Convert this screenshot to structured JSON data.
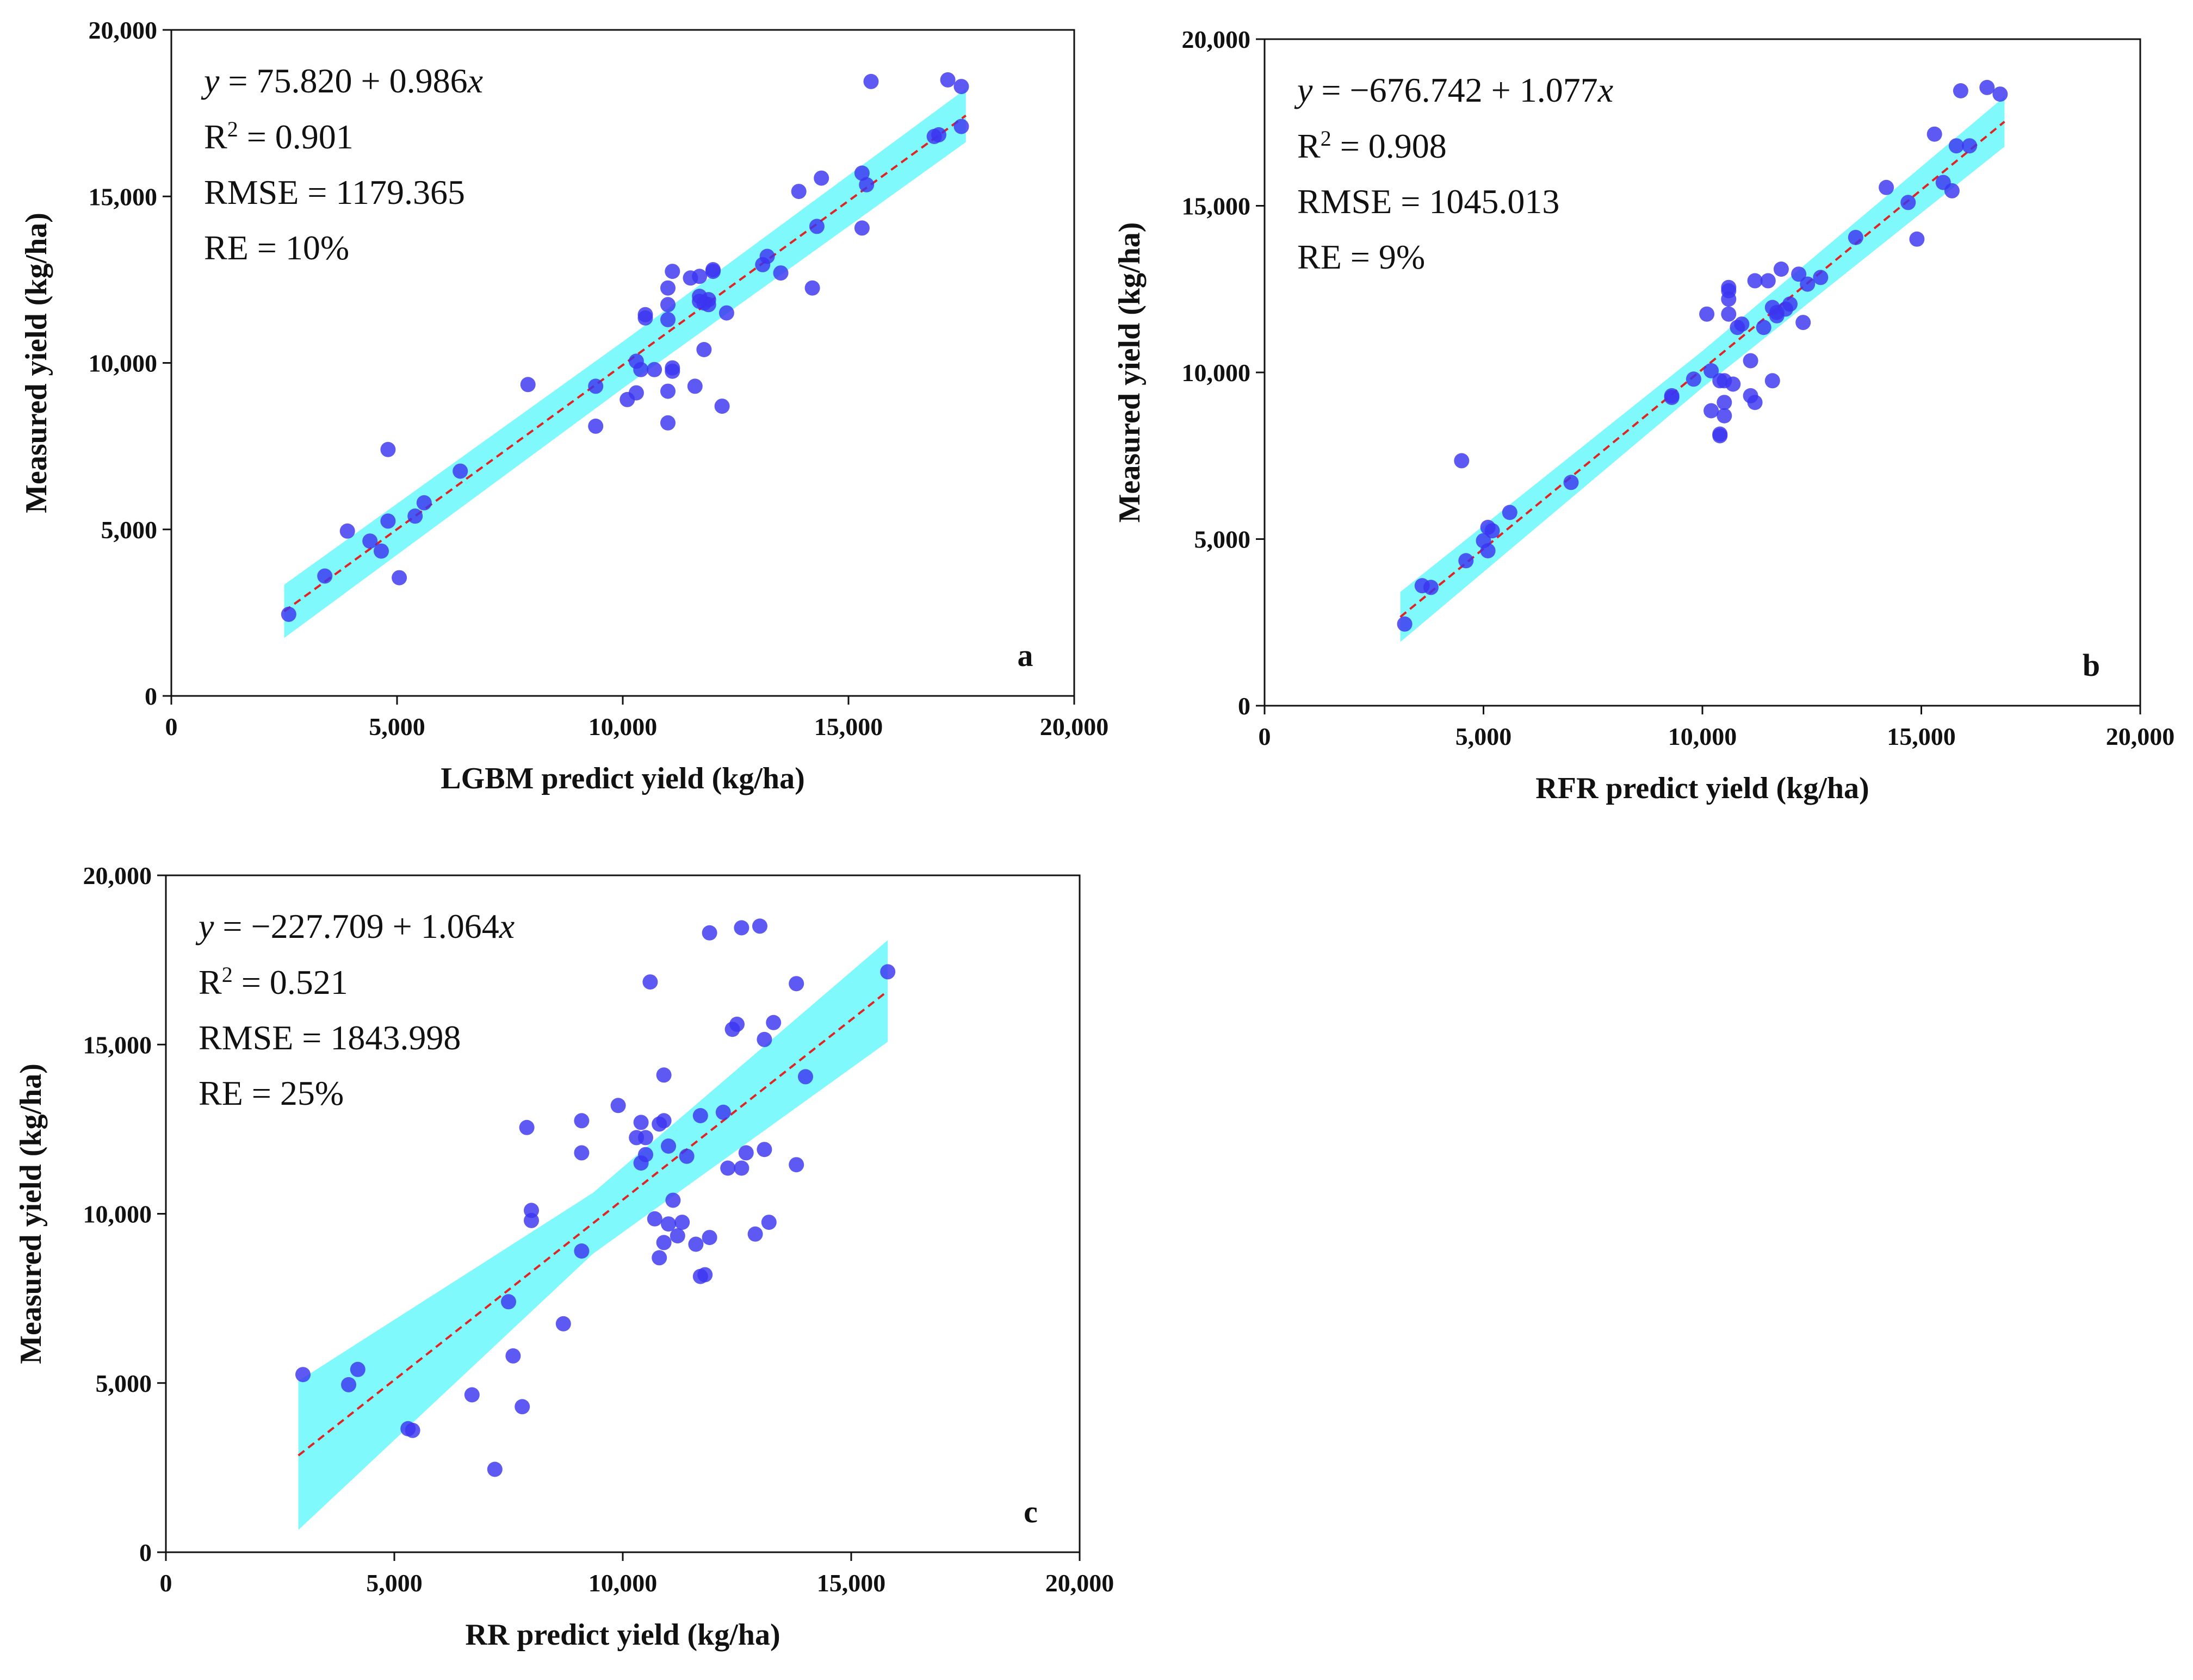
{
  "figure": {
    "panel_count": 3
  },
  "chart_data": [
    {
      "type": "scatter",
      "panel": "a",
      "xlabel": "LGBM predict yield (kg/ha)",
      "ylabel": "Measured yield (kg/ha)",
      "xlim": [
        0,
        20000
      ],
      "ylim": [
        0,
        20000
      ],
      "xticks": [
        0,
        5000,
        10000,
        15000,
        20000
      ],
      "yticks": [
        0,
        5000,
        10000,
        15000,
        20000
      ],
      "xtick_labels": [
        "0",
        "5,000",
        "10,000",
        "15,000",
        "20,000"
      ],
      "ytick_labels": [
        "0",
        "5,000",
        "10,000",
        "15,000",
        "20,000"
      ],
      "fit": {
        "intercept": 75.82,
        "slope": 0.986,
        "x_range": [
          2500,
          17600
        ],
        "band_half_width": [
          800,
          700,
          800
        ]
      },
      "equation": {
        "y_var": "y",
        "text": " = 75.820 + 0.986",
        "x_var": "x"
      },
      "r2": {
        "prefix": "R",
        "sup": "2",
        "text": " = 0.901"
      },
      "rmse": "RMSE = 1179.365",
      "re": "RE = 10%",
      "colors": {
        "point": "#3a35f0",
        "band": "#7ff9fb",
        "fit_line": "#e02424"
      },
      "points": [
        [
          2600,
          2450
        ],
        [
          3400,
          3600
        ],
        [
          3900,
          4950
        ],
        [
          4400,
          4650
        ],
        [
          4800,
          7400
        ],
        [
          4800,
          5250
        ],
        [
          4650,
          4350
        ],
        [
          5050,
          3550
        ],
        [
          5400,
          5400
        ],
        [
          5600,
          5800
        ],
        [
          6400,
          6750
        ],
        [
          7900,
          9350
        ],
        [
          9400,
          8100
        ],
        [
          9400,
          9300
        ],
        [
          10100,
          8900
        ],
        [
          10300,
          9100
        ],
        [
          10400,
          9800
        ],
        [
          10300,
          10050
        ],
        [
          10500,
          11450
        ],
        [
          10500,
          11350
        ],
        [
          10700,
          9800
        ],
        [
          11000,
          8200
        ],
        [
          11000,
          9150
        ],
        [
          11100,
          9850
        ],
        [
          11100,
          9750
        ],
        [
          11000,
          11750
        ],
        [
          11000,
          12250
        ],
        [
          11100,
          12750
        ],
        [
          11000,
          11300
        ],
        [
          11500,
          12550
        ],
        [
          11600,
          9300
        ],
        [
          11700,
          11850
        ],
        [
          11700,
          12000
        ],
        [
          11700,
          12600
        ],
        [
          11800,
          10400
        ],
        [
          11800,
          11800
        ],
        [
          11900,
          11750
        ],
        [
          11900,
          11900
        ],
        [
          12000,
          12800
        ],
        [
          12000,
          12750
        ],
        [
          12200,
          8700
        ],
        [
          12300,
          11500
        ],
        [
          13100,
          12950
        ],
        [
          13200,
          13200
        ],
        [
          13500,
          12700
        ],
        [
          13900,
          15150
        ],
        [
          14200,
          12250
        ],
        [
          14300,
          14100
        ],
        [
          14400,
          15550
        ],
        [
          15300,
          14050
        ],
        [
          15300,
          15700
        ],
        [
          15400,
          15350
        ],
        [
          15500,
          18450
        ],
        [
          16900,
          16800
        ],
        [
          17000,
          16850
        ],
        [
          17200,
          18500
        ],
        [
          17500,
          18300
        ],
        [
          17500,
          17100
        ]
      ]
    },
    {
      "type": "scatter",
      "panel": "b",
      "xlabel": "RFR predict yield (kg/ha)",
      "ylabel": "Measured yield (kg/ha)",
      "xlim": [
        0,
        20000
      ],
      "ylim": [
        0,
        20000
      ],
      "xticks": [
        0,
        5000,
        10000,
        15000,
        20000
      ],
      "yticks": [
        0,
        5000,
        10000,
        15000,
        20000
      ],
      "xtick_labels": [
        "0",
        "5,000",
        "10,000",
        "15,000",
        "20,000"
      ],
      "ytick_labels": [
        "0",
        "5,000",
        "10,000",
        "15,000",
        "20,000"
      ],
      "fit": {
        "intercept": -676.742,
        "slope": 1.077,
        "x_range": [
          3100,
          16900
        ],
        "band_half_width": [
          750,
          550,
          750
        ]
      },
      "equation": {
        "y_var": "y",
        "text": " = −676.742 + 1.077",
        "x_var": "x"
      },
      "r2": {
        "prefix": "R",
        "sup": "2",
        "text": " = 0.908"
      },
      "rmse": "RMSE = 1045.013",
      "re": "RE = 9%",
      "colors": {
        "point": "#3a35f0",
        "band": "#7ff9fb",
        "fit_line": "#e02424"
      },
      "points": [
        [
          3200,
          2450
        ],
        [
          3600,
          3600
        ],
        [
          3800,
          3550
        ],
        [
          4500,
          7350
        ],
        [
          4600,
          4350
        ],
        [
          5000,
          4950
        ],
        [
          5100,
          5350
        ],
        [
          5100,
          4650
        ],
        [
          5200,
          5250
        ],
        [
          5600,
          5800
        ],
        [
          7000,
          6700
        ],
        [
          9300,
          9250
        ],
        [
          9300,
          9300
        ],
        [
          9800,
          9800
        ],
        [
          10100,
          11750
        ],
        [
          10200,
          10050
        ],
        [
          10200,
          8850
        ],
        [
          10400,
          9750
        ],
        [
          10400,
          8150
        ],
        [
          10400,
          8100
        ],
        [
          10500,
          9750
        ],
        [
          10500,
          9100
        ],
        [
          10500,
          8700
        ],
        [
          10600,
          12550
        ],
        [
          10600,
          12450
        ],
        [
          10600,
          12200
        ],
        [
          10600,
          11750
        ],
        [
          10700,
          9650
        ],
        [
          10800,
          11350
        ],
        [
          10900,
          11450
        ],
        [
          11100,
          9300
        ],
        [
          11100,
          10350
        ],
        [
          11200,
          9100
        ],
        [
          11200,
          12750
        ],
        [
          11400,
          11350
        ],
        [
          11500,
          12750
        ],
        [
          11600,
          11950
        ],
        [
          11600,
          9750
        ],
        [
          11700,
          11700
        ],
        [
          11700,
          11800
        ],
        [
          11800,
          13100
        ],
        [
          11900,
          11900
        ],
        [
          12000,
          12050
        ],
        [
          12200,
          12950
        ],
        [
          12300,
          11500
        ],
        [
          12400,
          12650
        ],
        [
          12700,
          12850
        ],
        [
          13500,
          14050
        ],
        [
          14200,
          15550
        ],
        [
          14700,
          15100
        ],
        [
          14900,
          14000
        ],
        [
          15300,
          17150
        ],
        [
          15500,
          15700
        ],
        [
          15700,
          15450
        ],
        [
          15800,
          16800
        ],
        [
          15900,
          18450
        ],
        [
          16100,
          16800
        ],
        [
          16500,
          18550
        ],
        [
          16800,
          18350
        ]
      ]
    },
    {
      "type": "scatter",
      "panel": "c",
      "xlabel": "RR predict yield (kg/ha)",
      "ylabel": "Measured yield (kg/ha)",
      "xlim": [
        0,
        20000
      ],
      "ylim": [
        0,
        20000
      ],
      "xticks": [
        0,
        5000,
        10000,
        15000,
        20000
      ],
      "yticks": [
        0,
        5000,
        10000,
        15000,
        20000
      ],
      "xtick_labels": [
        "0",
        "5,000",
        "10,000",
        "15,000",
        "20,000"
      ],
      "ytick_labels": [
        "0",
        "5,000",
        "10,000",
        "15,000",
        "20,000"
      ],
      "fit": {
        "intercept": -227.709,
        "slope": 1.064,
        "x_range": [
          2900,
          15800
        ],
        "band_half_width": [
          2200,
          900,
          1500
        ]
      },
      "equation": {
        "y_var": "y",
        "text": " = −227.709 + 1.064",
        "x_var": "x"
      },
      "r2": {
        "prefix": "R",
        "sup": "2",
        "text": " = 0.521"
      },
      "rmse": "RMSE = 1843.998",
      "re": "RE = 25%",
      "colors": {
        "point": "#3a35f0",
        "band": "#7ff9fb",
        "fit_line": "#e02424"
      },
      "points": [
        [
          3000,
          5250
        ],
        [
          4000,
          4950
        ],
        [
          4200,
          5400
        ],
        [
          5300,
          3650
        ],
        [
          5400,
          3600
        ],
        [
          6700,
          4650
        ],
        [
          7200,
          2450
        ],
        [
          7500,
          7400
        ],
        [
          7600,
          5800
        ],
        [
          7800,
          4300
        ],
        [
          7900,
          12550
        ],
        [
          8000,
          10100
        ],
        [
          8000,
          9800
        ],
        [
          8700,
          6750
        ],
        [
          9100,
          8900
        ],
        [
          9100,
          11800
        ],
        [
          9100,
          12750
        ],
        [
          9900,
          13200
        ],
        [
          10300,
          12250
        ],
        [
          10400,
          12700
        ],
        [
          10400,
          11500
        ],
        [
          10500,
          11750
        ],
        [
          10500,
          12250
        ],
        [
          10600,
          16850
        ],
        [
          10700,
          9850
        ],
        [
          10800,
          12650
        ],
        [
          10800,
          8700
        ],
        [
          10900,
          14100
        ],
        [
          10900,
          12750
        ],
        [
          10900,
          9150
        ],
        [
          11000,
          12000
        ],
        [
          11000,
          9700
        ],
        [
          11100,
          10400
        ],
        [
          11200,
          9350
        ],
        [
          11300,
          9750
        ],
        [
          11400,
          11700
        ],
        [
          11600,
          9100
        ],
        [
          11700,
          12900
        ],
        [
          11700,
          8150
        ],
        [
          11800,
          8200
        ],
        [
          11900,
          9300
        ],
        [
          11900,
          18300
        ],
        [
          12200,
          13000
        ],
        [
          12300,
          11350
        ],
        [
          12400,
          15450
        ],
        [
          12500,
          15600
        ],
        [
          12600,
          11350
        ],
        [
          12600,
          18450
        ],
        [
          12700,
          11800
        ],
        [
          12900,
          9400
        ],
        [
          13000,
          18500
        ],
        [
          13100,
          11900
        ],
        [
          13100,
          15150
        ],
        [
          13200,
          9750
        ],
        [
          13300,
          15650
        ],
        [
          13800,
          16800
        ],
        [
          13800,
          11450
        ],
        [
          14000,
          14050
        ],
        [
          15800,
          17150
        ]
      ]
    }
  ]
}
